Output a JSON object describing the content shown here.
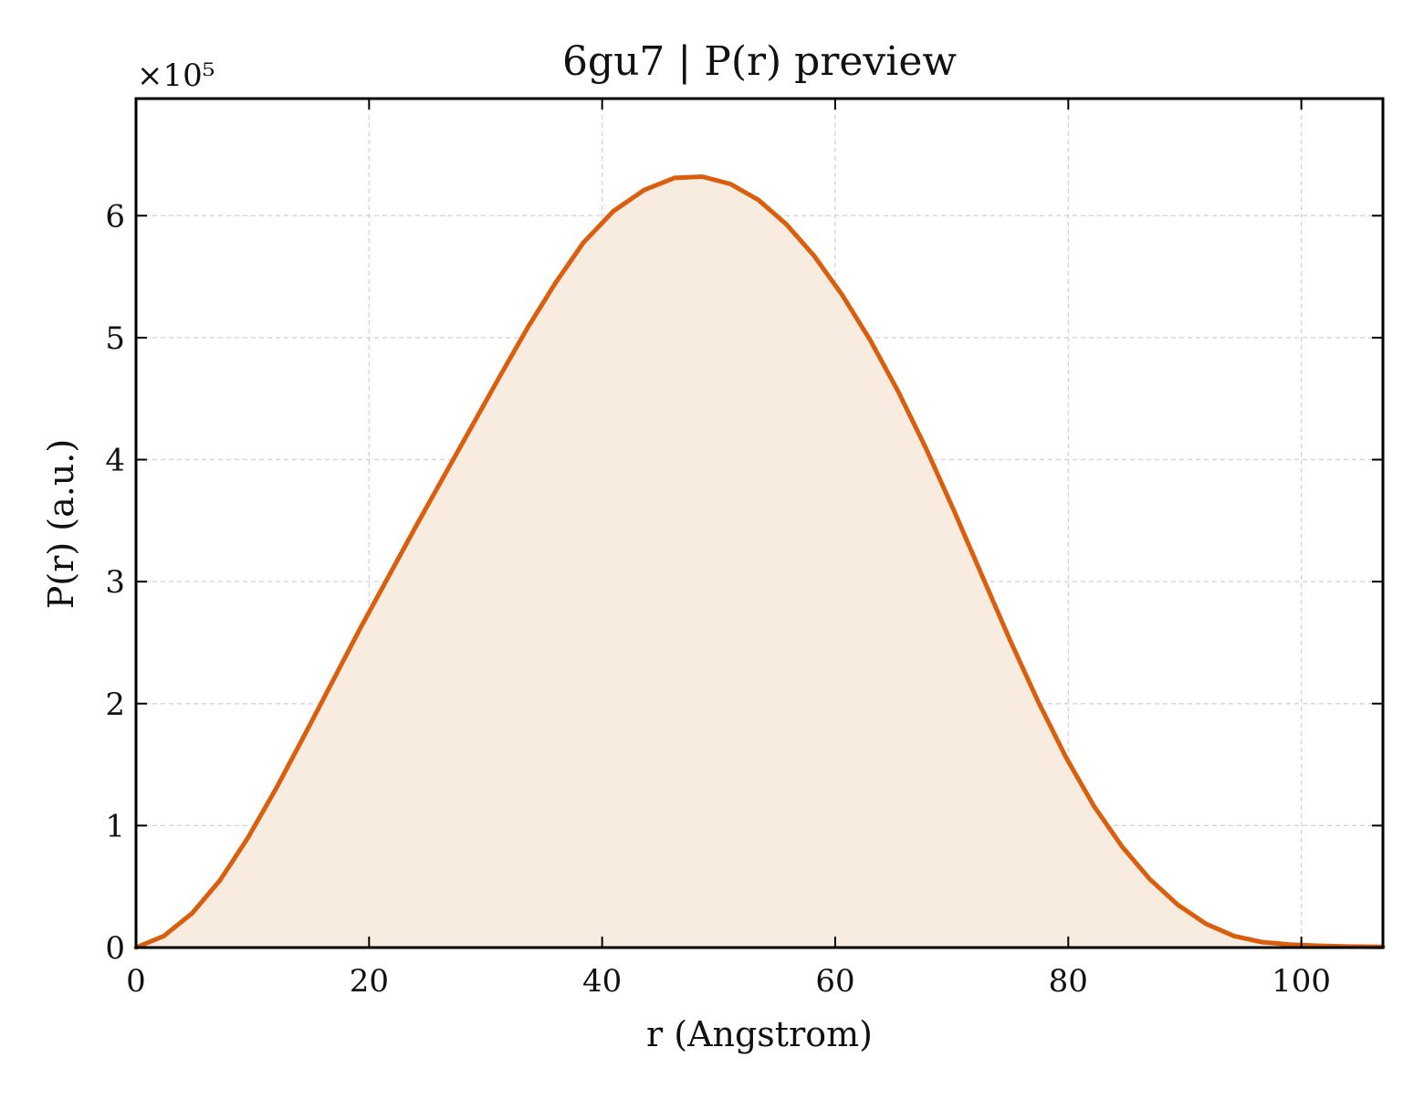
{
  "chart_data": {
    "type": "area",
    "title": "6gu7 | P(r) preview",
    "xlabel": "r (Angstrom)",
    "ylabel": "P(r) (a.u.)",
    "y_scale_label": "×10⁵",
    "y_scale_factor": 100000,
    "xlim": [
      0,
      107
    ],
    "ylim": [
      0,
      696000
    ],
    "xticks": [
      0,
      20,
      40,
      60,
      80,
      100
    ],
    "xtick_labels": [
      "0",
      "20",
      "40",
      "60",
      "80",
      "100"
    ],
    "yticks": [
      0,
      100000,
      200000,
      300000,
      400000,
      500000,
      600000
    ],
    "ytick_labels": [
      "0",
      "1",
      "2",
      "3",
      "4",
      "5",
      "6"
    ],
    "grid": true,
    "series": [
      {
        "line_color": "#d95f0e",
        "fill_color": "#f8ebe0",
        "x": [
          0,
          2.4,
          4.8,
          7.2,
          9.6,
          12.0,
          14.4,
          16.8,
          19.2,
          21.6,
          24.0,
          26.4,
          28.8,
          31.2,
          33.6,
          36.0,
          38.4,
          41.0,
          43.6,
          46.2,
          48.6,
          51.0,
          53.4,
          55.8,
          58.2,
          60.6,
          63.0,
          65.4,
          67.8,
          70.2,
          72.6,
          75.0,
          77.4,
          79.8,
          82.2,
          84.6,
          87.0,
          89.4,
          91.8,
          94.2,
          96.6,
          99.0,
          101.4,
          104.0,
          107.0
        ],
        "y": [
          0,
          9500,
          28000,
          55000,
          90000,
          130000,
          173000,
          217000,
          261000,
          303000,
          345000,
          386000,
          427000,
          468000,
          508000,
          545000,
          578000,
          604000,
          621000,
          631000,
          632000,
          626000,
          613000,
          593000,
          567000,
          535000,
          498000,
          456000,
          409000,
          358000,
          305000,
          252000,
          202000,
          156000,
          116000,
          83000,
          56000,
          35000,
          19500,
          9500,
          4500,
          2500,
          1500,
          800,
          500
        ]
      }
    ]
  }
}
